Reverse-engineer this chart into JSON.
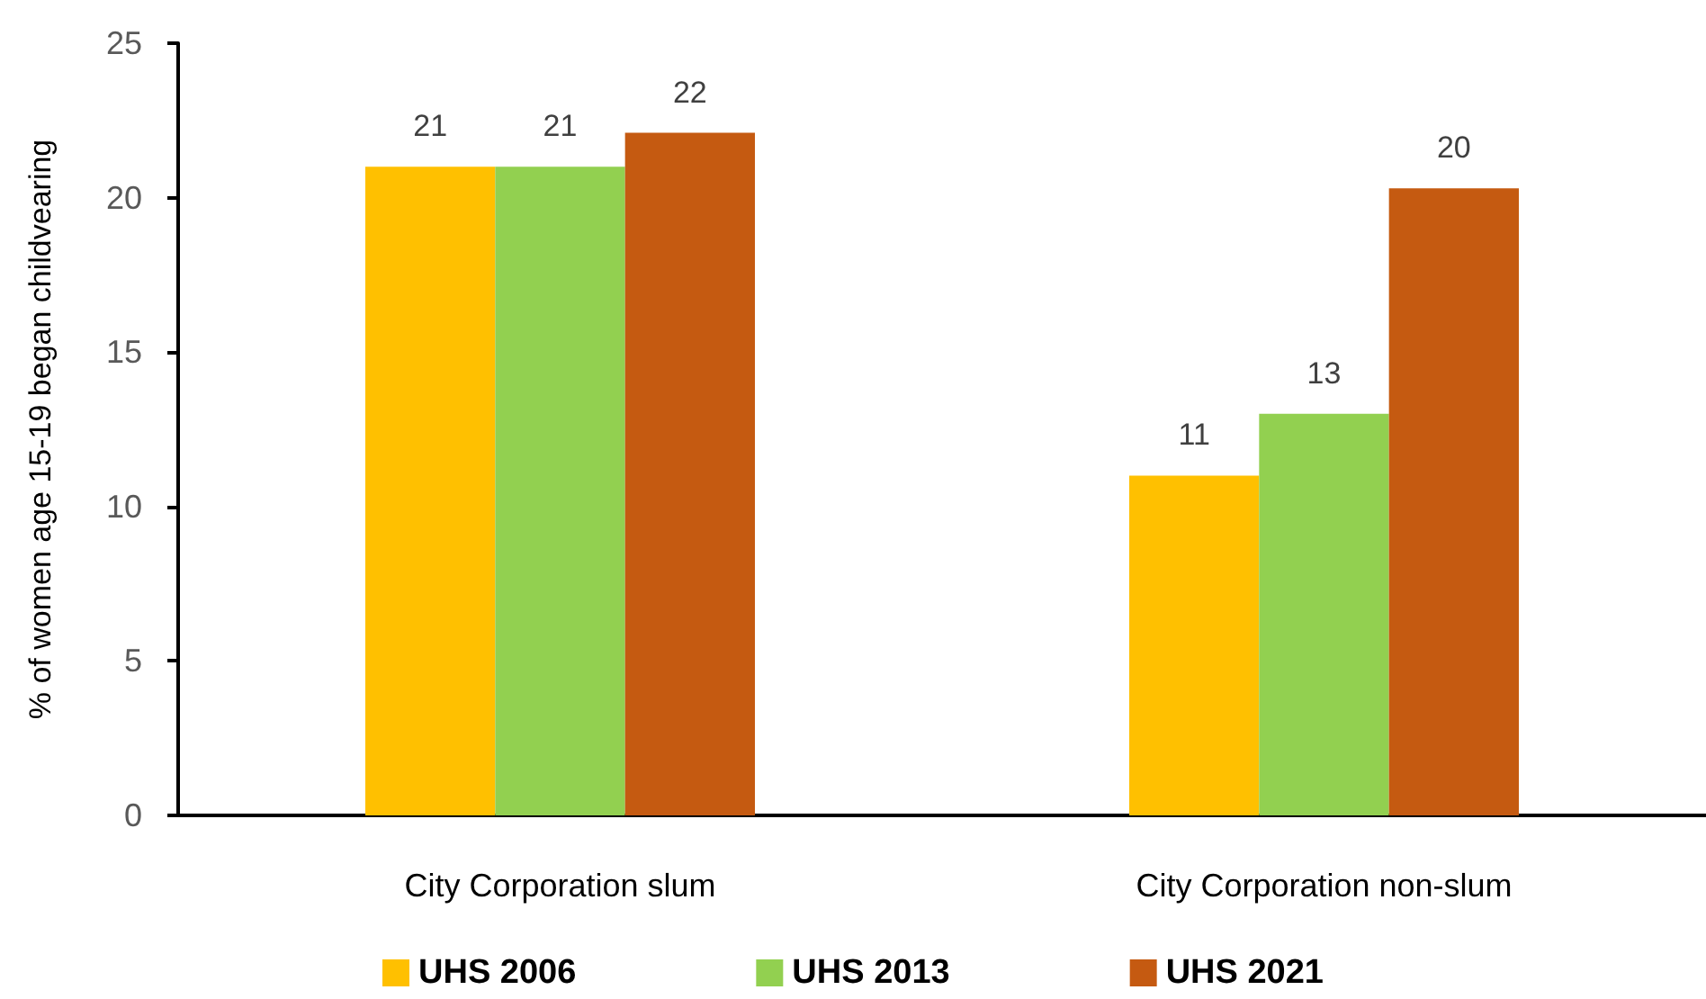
{
  "chart_data": {
    "type": "bar",
    "ylabel": "% of women age 15-19 began childvearing",
    "categories": [
      "City Corporation slum",
      "City Corporation non-slum"
    ],
    "series": [
      {
        "name": "UHS 2006",
        "color": "#ffc000",
        "values": [
          21,
          11
        ],
        "value_labels": [
          "21",
          "11"
        ]
      },
      {
        "name": "UHS 2013",
        "color": "#92d050",
        "values": [
          21,
          13
        ],
        "value_labels": [
          "21",
          "13"
        ]
      },
      {
        "name": "UHS 2021",
        "color": "#c55a11",
        "values": [
          22.1,
          20.3
        ],
        "value_labels": [
          "22",
          "20"
        ]
      }
    ],
    "ylim": [
      0,
      25
    ],
    "yticks": [
      0,
      5,
      10,
      15,
      20,
      25
    ],
    "grid": false,
    "legend": "bottom"
  }
}
